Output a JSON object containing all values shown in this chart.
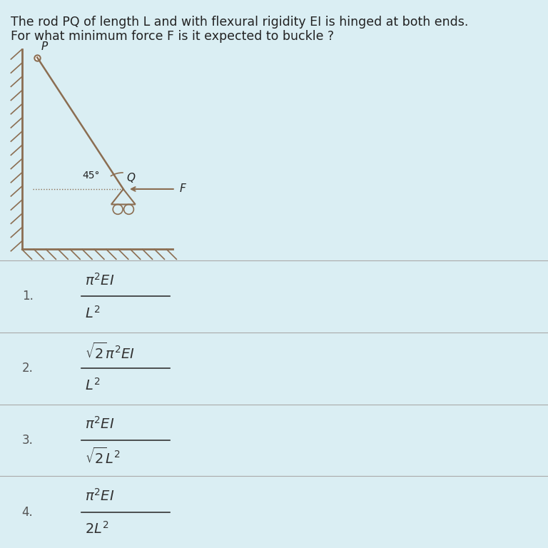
{
  "bg_color": "#daeef3",
  "title_line1": "The rod PQ of length L and with flexural rigidity EI is hinged at both ends.",
  "title_line2": "For what minimum force F is it expected to buckle ?",
  "title_fontsize": 12.5,
  "title_color": "#222222",
  "options": [
    {
      "num": "1.",
      "numer": "\\pi^2 EI",
      "denom": "L^2"
    },
    {
      "num": "2.",
      "numer": "\\sqrt{2}\\pi^2 EI",
      "denom": "L^2"
    },
    {
      "num": "3.",
      "numer": "\\pi^2 EI",
      "denom": "\\sqrt{2}L^2"
    },
    {
      "num": "4.",
      "numer": "\\pi^2 EI",
      "denom": "2L^2"
    }
  ],
  "option_number_color": "#555555",
  "formula_color": "#333333",
  "divider_color": "#aaaaaa",
  "diagram": {
    "rod_color": "#8B6E52",
    "wall_color": "#8B6E52",
    "hatch_color": "#8B6E52",
    "angle_label": "45°",
    "F_label": "F",
    "P_label": "P",
    "Q_label": "Q"
  }
}
